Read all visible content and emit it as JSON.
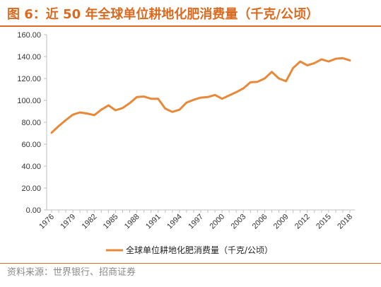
{
  "title": "图 6：近 50 年全球单位耕地化肥消费量（千克/公顷）",
  "source": "资料来源：世界银行、招商证券",
  "colors": {
    "accent": "#d96a1f",
    "line": "#e8893a",
    "axis": "#bfbfbf",
    "text": "#222222"
  },
  "chart_data": {
    "type": "line",
    "title": "",
    "xlabel": "",
    "ylabel": "",
    "ylim": [
      0,
      160
    ],
    "yticks": [
      "0.00",
      "20.00",
      "40.00",
      "60.00",
      "80.00",
      "100.00",
      "120.00",
      "140.00",
      "160.00"
    ],
    "xticks": [
      "1976",
      "1979",
      "1982",
      "1985",
      "1988",
      "1991",
      "1994",
      "1997",
      "2000",
      "2003",
      "2006",
      "2009",
      "2012",
      "2015",
      "2018"
    ],
    "grid": false,
    "legend": "bottom",
    "x": [
      1976,
      1977,
      1978,
      1979,
      1980,
      1981,
      1982,
      1983,
      1984,
      1985,
      1986,
      1987,
      1988,
      1989,
      1990,
      1991,
      1992,
      1993,
      1994,
      1995,
      1996,
      1997,
      1998,
      1999,
      2000,
      2001,
      2002,
      2003,
      2004,
      2005,
      2006,
      2007,
      2008,
      2009,
      2010,
      2011,
      2012,
      2013,
      2014,
      2015,
      2016,
      2017,
      2018
    ],
    "series": [
      {
        "name": "全球单位耕地化肥消费量（千克/公顷）",
        "values": [
          70.5,
          76.5,
          82,
          87,
          89,
          88,
          86.5,
          91.5,
          95.5,
          91,
          93,
          97.5,
          103,
          103.5,
          101.5,
          101.5,
          92.5,
          89.5,
          91.5,
          98,
          100.5,
          102.5,
          103,
          105,
          101.5,
          104.5,
          107.5,
          111,
          116.5,
          117,
          120,
          126,
          120,
          117.5,
          129.5,
          135.5,
          132,
          134,
          137.5,
          135.5,
          138,
          138.5,
          136.5
        ]
      }
    ]
  }
}
